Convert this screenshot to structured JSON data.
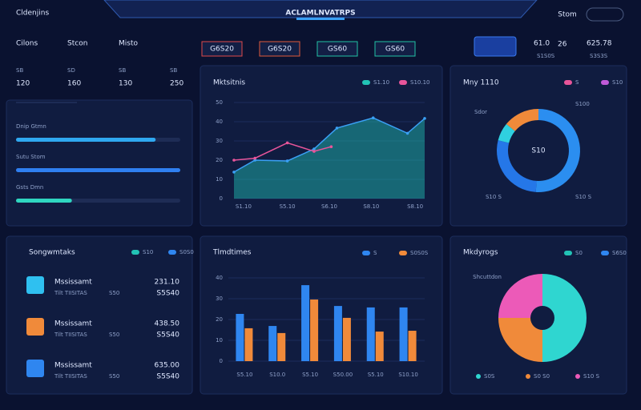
{
  "header": {
    "left": "Cldenjins",
    "title": "ACLAMLNVATRPS",
    "right": "Stom"
  },
  "tabs": [
    "Cilons",
    "Stcon",
    "Misto"
  ],
  "stats": [
    {
      "label": "SB",
      "value": 120
    },
    {
      "label": "SD",
      "value": 160
    },
    {
      "label": "SB",
      "value": 130
    },
    {
      "label": "SB",
      "value": 250
    }
  ],
  "progress": {
    "xlim": [
      0,
      100
    ],
    "items": [
      {
        "label": "Dnip Gtmn",
        "value": 85,
        "color": "#2fa8f0"
      },
      {
        "label": "Sutu Stom",
        "value": 100,
        "color": "#2f7ff0"
      },
      {
        "label": "Gsts Dmn",
        "value": 34,
        "color": "#2fd6c0"
      }
    ]
  },
  "buttons": [
    {
      "label": "G6S20",
      "color": "#e04a4a"
    },
    {
      "label": "G6S20",
      "color": "#e05a3a"
    },
    {
      "label": "GS60",
      "color": "#22c3a5"
    },
    {
      "label": "GS60",
      "color": "#22c3a5"
    }
  ],
  "summary": [
    {
      "value": "61.0",
      "unit": "26",
      "sub": "S1S0S"
    },
    {
      "value": "625.78",
      "sub": "S3S3S"
    }
  ],
  "area_chart": {
    "type": "area",
    "title": "Mktsitnis",
    "xlim": [
      0,
      10
    ],
    "ylim": [
      0,
      50
    ],
    "xticks": [
      {
        "value": 0.5,
        "label": "S1.10"
      },
      {
        "value": 2.8,
        "label": "S5.10"
      },
      {
        "value": 5,
        "label": "S6.10"
      },
      {
        "value": 7.2,
        "label": "S8.10"
      },
      {
        "value": 9.5,
        "label": "S8.10"
      }
    ],
    "yticks": [
      0,
      10,
      20,
      30,
      40,
      50
    ],
    "series": [
      {
        "name": "S1.10",
        "color": "#22c3b5",
        "line_color": "#3aa0f5",
        "x": [
          0,
          1.1,
          2.8,
          4.2,
          5.4,
          7.3,
          9.1,
          10
        ],
        "values": [
          13.8,
          20,
          19.6,
          25.8,
          36.7,
          42,
          34,
          41.7
        ]
      },
      {
        "name": "S10.10",
        "color": "#e8559a",
        "x": [
          0,
          1.1,
          2.8,
          4.2,
          5.1
        ],
        "values": [
          20,
          21,
          29,
          24.6,
          27
        ]
      }
    ]
  },
  "donut_chart": {
    "type": "donut",
    "title": "Mny 1110",
    "center": "S10",
    "legend": [
      {
        "name": "S",
        "color": "#e8559a"
      },
      {
        "name": "S10",
        "color": "#c05ad8"
      }
    ],
    "categories": [
      "S100",
      "S10 S",
      "S10 S",
      "Sdor"
    ],
    "values": [
      51,
      28,
      7,
      14
    ],
    "colors": [
      "#2b8ef0",
      "#2577e8",
      "#2fd0e0",
      "#f08a3a"
    ]
  },
  "list": {
    "title": "Songwmtaks",
    "legend": [
      {
        "name": "S10",
        "color": "#22c3b5"
      },
      {
        "name": "S0S0",
        "color": "#2f86f0"
      }
    ],
    "items": [
      {
        "title": "Mssissamt",
        "sub": "Tilt TIISITAS",
        "extra": "S50",
        "value": "231.10",
        "note": "S5S40",
        "color": "#2fc0f0"
      },
      {
        "title": "Mssissamt",
        "sub": "Tilt TIISITAS",
        "extra": "S50",
        "value": "438.50",
        "note": "S5S40",
        "color": "#f08a3a"
      },
      {
        "title": "Mssissamt",
        "sub": "Tilt TIISITAS",
        "extra": "S50",
        "value": "635.00",
        "note": "S5S40",
        "color": "#2f86f0"
      }
    ]
  },
  "bar_chart": {
    "type": "bar",
    "title": "Tlmdtimes",
    "ylim": [
      0,
      40
    ],
    "yticks": [
      0,
      10,
      20,
      30,
      40
    ],
    "categories": [
      "S5.10",
      "S10.0",
      "S5.10",
      "S50.00",
      "S5.10",
      "S10.10"
    ],
    "series": [
      {
        "name": "S",
        "color": "#2f86f0",
        "values": [
          22.7,
          16.9,
          36.5,
          26.5,
          25.8,
          25.8
        ]
      },
      {
        "name": "S0S0S",
        "color": "#f08a3a",
        "values": [
          15.8,
          13.5,
          29.6,
          20.8,
          14.2,
          14.6
        ]
      }
    ]
  },
  "pie_chart": {
    "type": "donut",
    "title": "Mkdyrogs",
    "side_label": "Shcuttdon",
    "legend": [
      {
        "name": "S0",
        "color": "#22c3b5"
      },
      {
        "name": "S6S0",
        "color": "#2f86f0"
      }
    ],
    "categories": [
      "S0S",
      "S0 S0",
      "S10 S"
    ],
    "values": [
      50,
      25,
      25
    ],
    "colors": [
      "#2fd6d0",
      "#f08a3a",
      "#ec5ab8"
    ]
  }
}
